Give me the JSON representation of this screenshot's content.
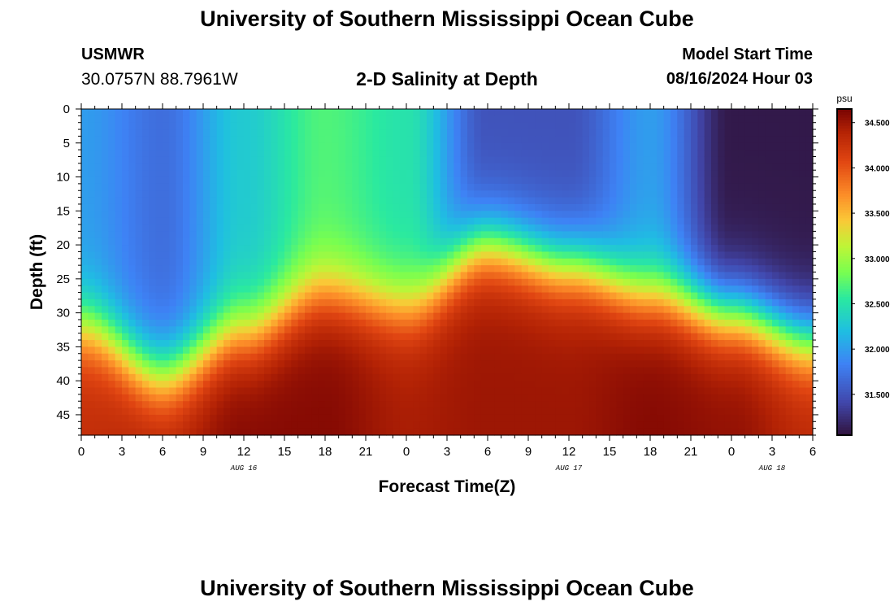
{
  "header": {
    "title": "University of Southern Mississippi Ocean Cube",
    "station": "USMWR",
    "coordinates": "30.0757N  88.7961W",
    "subtitle": "2-D Salinity at Depth",
    "start_label": "Model Start Time",
    "start_value": "08/16/2024 Hour 03"
  },
  "footer": {
    "title": "University of Southern Mississippi Ocean Cube"
  },
  "chart_data": {
    "type": "heatmap",
    "xlabel": "Forecast Time(Z)",
    "ylabel": "Depth (ft)",
    "x_tick_labels": [
      "0",
      "3",
      "6",
      "9",
      "12",
      "15",
      "18",
      "21",
      "0",
      "3",
      "6",
      "9",
      "12",
      "15",
      "18",
      "21",
      "0",
      "3",
      "6"
    ],
    "x_range_hours": [
      0,
      54
    ],
    "date_labels": [
      {
        "label": "AUG 16",
        "hour": 12
      },
      {
        "label": "AUG 17",
        "hour": 36
      },
      {
        "label": "AUG 18",
        "hour": 51
      }
    ],
    "y_tick_labels": [
      "0",
      "5",
      "10",
      "15",
      "20",
      "25",
      "30",
      "35",
      "40",
      "45"
    ],
    "y_range": [
      0,
      48
    ],
    "colorbar": {
      "unit": "psu",
      "min": 31.05,
      "max": 34.65,
      "ticks": [
        "34.500",
        "34.000",
        "33.500",
        "33.000",
        "32.500",
        "32.000",
        "31.500"
      ],
      "tick_values": [
        34.5,
        34.0,
        33.5,
        33.0,
        32.5,
        32.0,
        31.5
      ]
    },
    "grid": false,
    "hours": [
      0,
      6,
      12,
      18,
      24,
      30,
      36,
      42,
      48,
      54
    ],
    "surface_salinity": [
      32.0,
      31.7,
      32.3,
      32.7,
      32.5,
      31.5,
      31.5,
      32.0,
      31.1,
      31.1
    ],
    "mixed_layer_depth": [
      28,
      35,
      29,
      23,
      25,
      16,
      19,
      23,
      26,
      30
    ],
    "bottom_salinity": [
      34.3,
      34.4,
      34.6,
      34.6,
      34.45,
      34.5,
      34.5,
      34.6,
      34.55,
      34.35
    ]
  }
}
